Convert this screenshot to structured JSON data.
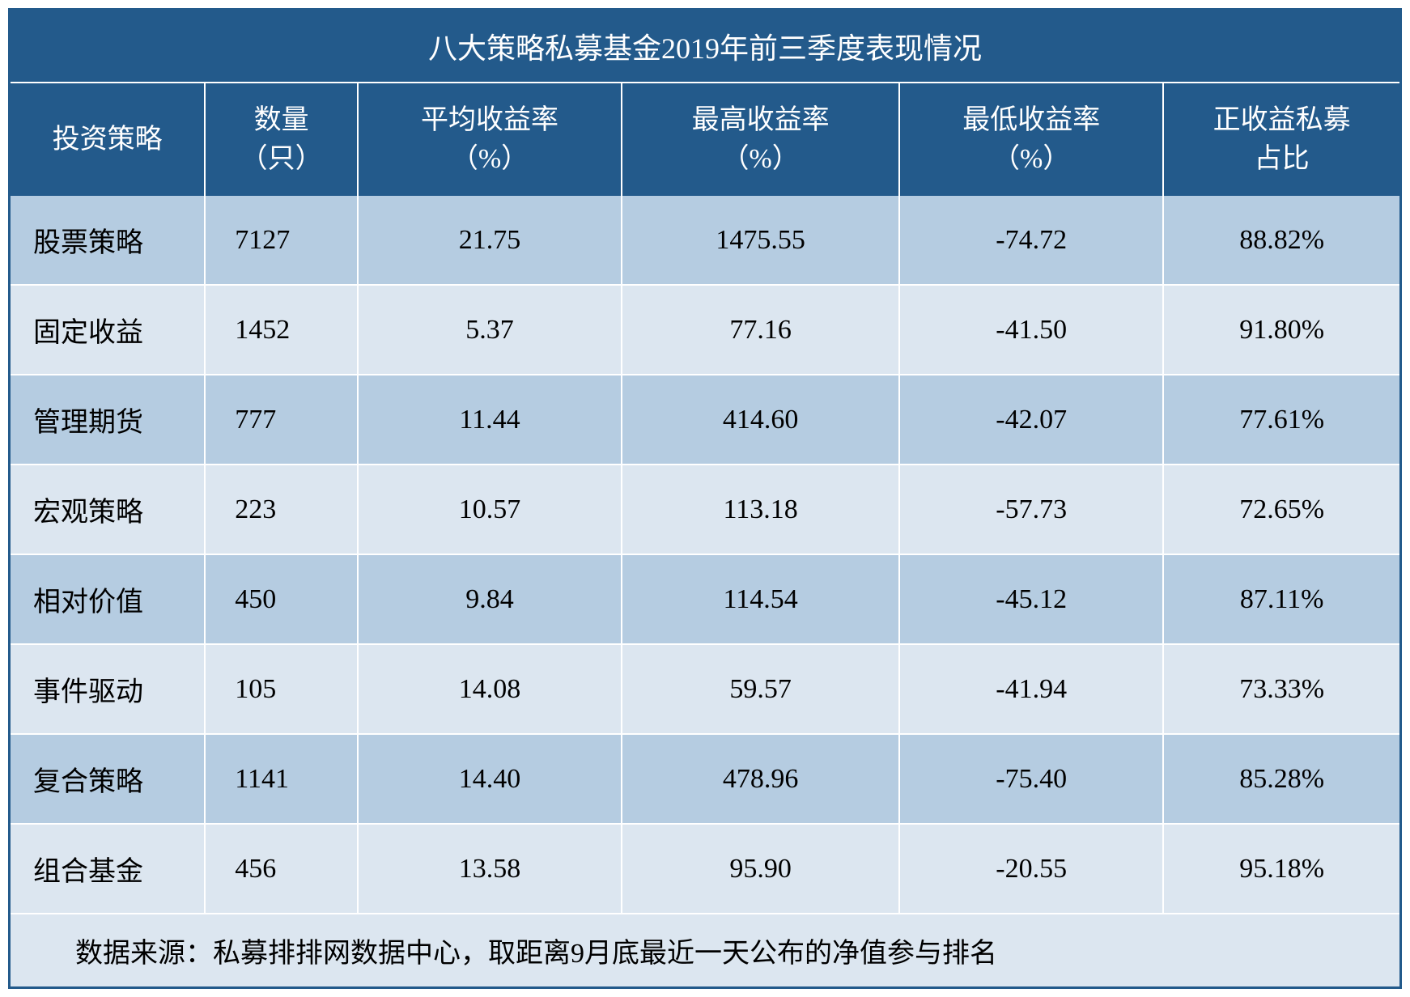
{
  "table": {
    "type": "table",
    "title": "八大策略私募基金2019年前三季度表现情况",
    "columns": [
      {
        "key": "strategy",
        "label_line1": "投资策略",
        "label_line2": "",
        "width_pct": 14,
        "align": "left"
      },
      {
        "key": "count",
        "label_line1": "数量",
        "label_line2": "（只）",
        "width_pct": 11,
        "align": "left"
      },
      {
        "key": "avg",
        "label_line1": "平均收益率",
        "label_line2": "（%）",
        "width_pct": 19,
        "align": "center"
      },
      {
        "key": "max",
        "label_line1": "最高收益率",
        "label_line2": "（%）",
        "width_pct": 20,
        "align": "center"
      },
      {
        "key": "min",
        "label_line1": "最低收益率",
        "label_line2": "（%）",
        "width_pct": 19,
        "align": "center"
      },
      {
        "key": "pos",
        "label_line1": "正收益私募",
        "label_line2": "占比",
        "width_pct": 17,
        "align": "center"
      }
    ],
    "rows": [
      {
        "strategy": "股票策略",
        "count": "7127",
        "avg": "21.75",
        "max": "1475.55",
        "min": "-74.72",
        "pos": "88.82%"
      },
      {
        "strategy": "固定收益",
        "count": "1452",
        "avg": "5.37",
        "max": "77.16",
        "min": "-41.50",
        "pos": "91.80%"
      },
      {
        "strategy": "管理期货",
        "count": "777",
        "avg": "11.44",
        "max": "414.60",
        "min": "-42.07",
        "pos": "77.61%"
      },
      {
        "strategy": "宏观策略",
        "count": "223",
        "avg": "10.57",
        "max": "113.18",
        "min": "-57.73",
        "pos": "72.65%"
      },
      {
        "strategy": "相对价值",
        "count": "450",
        "avg": "9.84",
        "max": "114.54",
        "min": "-45.12",
        "pos": "87.11%"
      },
      {
        "strategy": "事件驱动",
        "count": "105",
        "avg": "14.08",
        "max": "59.57",
        "min": "-41.94",
        "pos": "73.33%"
      },
      {
        "strategy": "复合策略",
        "count": "1141",
        "avg": "14.40",
        "max": "478.96",
        "min": "-75.40",
        "pos": "85.28%"
      },
      {
        "strategy": "组合基金",
        "count": "456",
        "avg": "13.58",
        "max": "95.90",
        "min": "-20.55",
        "pos": "95.18%"
      }
    ],
    "footer": "数据来源：私募排排网数据中心，取距离9月底最近一天公布的净值参与排名",
    "colors": {
      "header_bg": "#235a8b",
      "header_text": "#ffffff",
      "row_odd_bg": "#b5cce1",
      "row_even_bg": "#dce6f0",
      "cell_text": "#000000",
      "grid_line": "#ffffff",
      "outer_border": "#235a8b"
    },
    "typography": {
      "title_fontsize_pt": 27,
      "header_fontsize_pt": 26,
      "cell_fontsize_pt": 26,
      "footer_fontsize_pt": 26,
      "font_family": "SimSun"
    }
  }
}
